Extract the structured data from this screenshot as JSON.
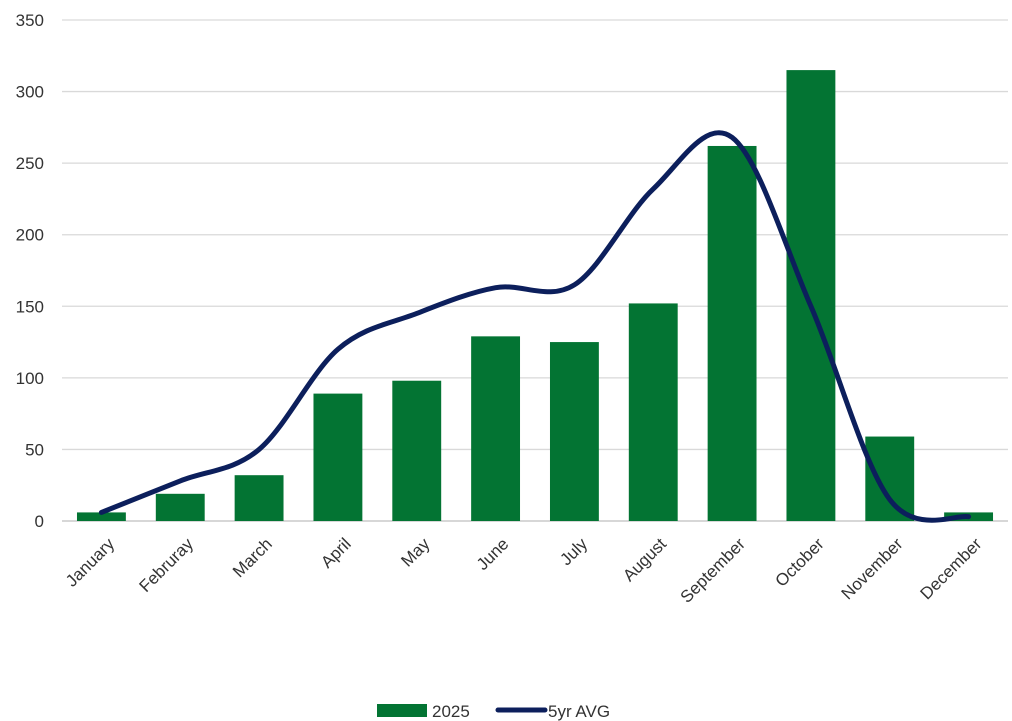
{
  "chart_data": {
    "type": "bar",
    "categories": [
      "January",
      "Februray",
      "March",
      "April",
      "May",
      "June",
      "July",
      "August",
      "September",
      "October",
      "November",
      "December"
    ],
    "ylim": [
      0,
      350
    ],
    "yticks": [
      0,
      50,
      100,
      150,
      200,
      250,
      300,
      350
    ],
    "grid": true,
    "legend_position": "bottom",
    "series": [
      {
        "name": "2025",
        "type": "bar",
        "color": "#037433",
        "values": [
          6,
          19,
          32,
          89,
          98,
          129,
          125,
          152,
          262,
          315,
          59,
          6
        ]
      },
      {
        "name": "5yr AVG",
        "type": "line",
        "smooth": true,
        "color": "#0c1f5c",
        "values": [
          6,
          28,
          50,
          120,
          145,
          163,
          165,
          232,
          268,
          150,
          15,
          3
        ]
      }
    ]
  }
}
